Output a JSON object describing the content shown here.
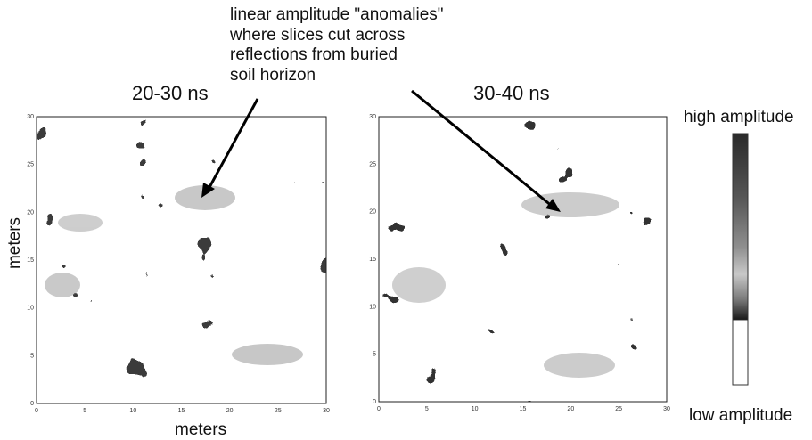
{
  "annotation": {
    "lines": [
      "linear amplitude \"anomalies\"",
      "where slices cut across",
      "reflections from buried",
      "soil horizon"
    ]
  },
  "panels": [
    {
      "title": "20-30 ns"
    },
    {
      "title": "30-40 ns"
    }
  ],
  "axes": {
    "x_label": "meters",
    "y_label": "meters",
    "ticks": [
      "0",
      "5",
      "10",
      "15",
      "20",
      "25",
      "30"
    ]
  },
  "legend": {
    "high_label": "high amplitude",
    "low_label": "low amplitude"
  },
  "colors": {
    "low": "#ffffff",
    "dark": "#1c1c1c",
    "mid": "#8a8a8a",
    "light": "#c4c4c4"
  }
}
